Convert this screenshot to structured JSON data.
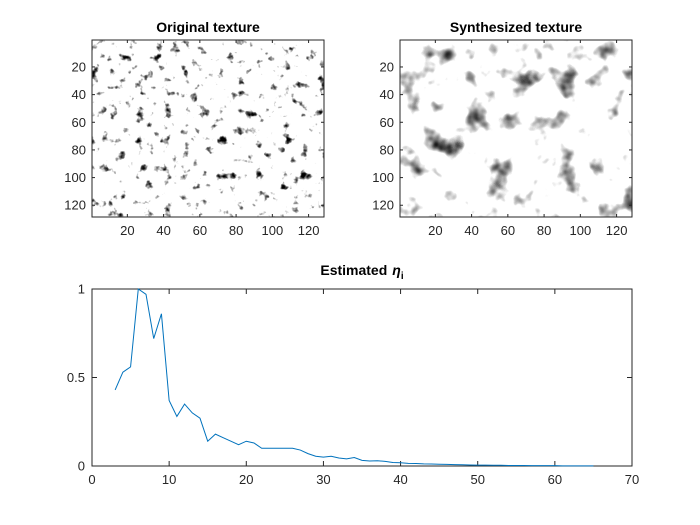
{
  "chart_data": [
    {
      "type": "heatmap",
      "title": "Original texture",
      "xticks": [
        20,
        40,
        60,
        80,
        100,
        120
      ],
      "yticks": [
        20,
        40,
        60,
        80,
        100,
        120
      ],
      "xlim": [
        0.5,
        128.5
      ],
      "ylim": [
        0.5,
        128.5
      ],
      "colormap": "gray",
      "texture_size": [
        128,
        128
      ]
    },
    {
      "type": "heatmap",
      "title": "Synthesized texture",
      "xticks": [
        20,
        40,
        60,
        80,
        100,
        120
      ],
      "yticks": [
        20,
        40,
        60,
        80,
        100,
        120
      ],
      "xlim": [
        0.5,
        128.5
      ],
      "ylim": [
        0.5,
        128.5
      ],
      "colormap": "gray",
      "texture_size": [
        128,
        128
      ]
    },
    {
      "type": "line",
      "title": "Estimated",
      "title_symbol": "η",
      "title_subscript": "i",
      "xlim": [
        0,
        70
      ],
      "ylim": [
        0,
        1
      ],
      "xticks": [
        0,
        10,
        20,
        30,
        40,
        50,
        60,
        70
      ],
      "yticks": [
        0,
        0.5,
        1
      ],
      "ytick_labels": [
        "0",
        "0.5",
        "1"
      ],
      "line_color": "#0072BD",
      "x": [
        3,
        4,
        5,
        6,
        7,
        8,
        9,
        10,
        11,
        12,
        13,
        14,
        15,
        16,
        17,
        18,
        19,
        20,
        21,
        22,
        23,
        24,
        25,
        26,
        27,
        28,
        29,
        30,
        31,
        32,
        33,
        34,
        35,
        36,
        37,
        38,
        39,
        40,
        41,
        42,
        43,
        44,
        45,
        46,
        47,
        48,
        49,
        50,
        51,
        52,
        53,
        54,
        55,
        56,
        57,
        58,
        59,
        60,
        61,
        62,
        63,
        64,
        65
      ],
      "y": [
        0.43,
        0.53,
        0.56,
        1.0,
        0.97,
        0.72,
        0.86,
        0.37,
        0.28,
        0.35,
        0.3,
        0.27,
        0.14,
        0.18,
        0.16,
        0.14,
        0.12,
        0.14,
        0.13,
        0.1,
        0.1,
        0.1,
        0.1,
        0.1,
        0.09,
        0.07,
        0.055,
        0.05,
        0.055,
        0.045,
        0.04,
        0.048,
        0.032,
        0.028,
        0.03,
        0.026,
        0.02,
        0.018,
        0.015,
        0.014,
        0.012,
        0.011,
        0.01,
        0.009,
        0.008,
        0.007,
        0.006,
        0.005,
        0.005,
        0.004,
        0.004,
        0.003,
        0.003,
        0.003,
        0.002,
        0.002,
        0.002,
        0.002,
        0.001,
        0.001,
        0.001,
        0.001,
        0.001
      ]
    }
  ]
}
